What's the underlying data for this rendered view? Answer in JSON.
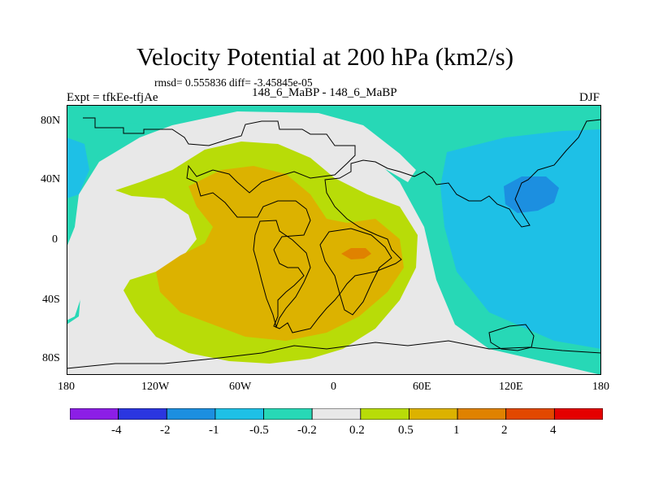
{
  "title": "Velocity Potential at 200 hPa (km2/s)",
  "stats": "rmsd= 0.555836 diff= -3.45845e-05",
  "left_label": "Expt = tfkEe-tfjAe",
  "center_label": "148_6_MaBP - 148_6_MaBP",
  "right_label": "DJF",
  "lat_labels": [
    "80N",
    "40N",
    "0",
    "40S",
    "80S"
  ],
  "lon_labels": [
    "180",
    "120W",
    "60W",
    "0",
    "60E",
    "120E",
    "180"
  ],
  "colorbar": {
    "colors": [
      "#8c1ee6",
      "#2b36e0",
      "#1c8fe0",
      "#1ec0e6",
      "#27d8b6",
      "#e8e8e8",
      "#b8dc08",
      "#dcb200",
      "#e08200",
      "#e24800",
      "#e40000"
    ],
    "labels": [
      "-4",
      "-2",
      "-1",
      "-0.5",
      "-0.2",
      "0.2",
      "0.5",
      "1",
      "2",
      "4"
    ]
  },
  "map_colors": {
    "neutral": "#e8e8e8",
    "neg_02": "#27d8b6",
    "neg_05": "#1ec0e6",
    "neg_1": "#1c8fe0",
    "pos_02": "#b8dc08",
    "pos_05": "#dcb200",
    "pos_1": "#e08200"
  }
}
